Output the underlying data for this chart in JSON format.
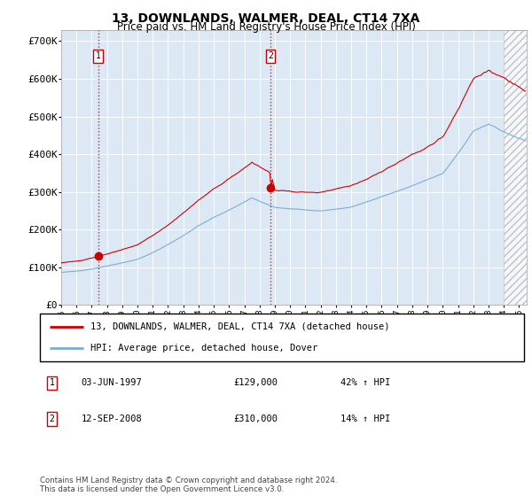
{
  "title": "13, DOWNLANDS, WALMER, DEAL, CT14 7XA",
  "subtitle": "Price paid vs. HM Land Registry's House Price Index (HPI)",
  "legend_line1": "13, DOWNLANDS, WALMER, DEAL, CT14 7XA (detached house)",
  "legend_line2": "HPI: Average price, detached house, Dover",
  "annotation1_label": "1",
  "annotation1_date": "03-JUN-1997",
  "annotation1_price": "£129,000",
  "annotation1_hpi": "42% ↑ HPI",
  "annotation2_label": "2",
  "annotation2_date": "12-SEP-2008",
  "annotation2_price": "£310,000",
  "annotation2_hpi": "14% ↑ HPI",
  "sale1_year": 1997.42,
  "sale1_price": 129000,
  "sale2_year": 2008.71,
  "sale2_price": 310000,
  "hpi_color": "#7aaed4",
  "price_color": "#cc0000",
  "plot_bg": "#dce9f5",
  "footer": "Contains HM Land Registry data © Crown copyright and database right 2024.\nThis data is licensed under the Open Government Licence v3.0.",
  "ylim": [
    0,
    730000
  ],
  "xlim_start": 1995.0,
  "xlim_end": 2025.5,
  "yticks": [
    0,
    100000,
    200000,
    300000,
    400000,
    500000,
    600000,
    700000
  ],
  "ytick_labels": [
    "£0",
    "£100K",
    "£200K",
    "£300K",
    "£400K",
    "£500K",
    "£600K",
    "£700K"
  ],
  "xticks": [
    1995,
    1996,
    1997,
    1998,
    1999,
    2000,
    2001,
    2002,
    2003,
    2004,
    2005,
    2006,
    2007,
    2008,
    2009,
    2010,
    2011,
    2012,
    2013,
    2014,
    2015,
    2016,
    2017,
    2018,
    2019,
    2020,
    2021,
    2022,
    2023,
    2024,
    2025
  ],
  "hatch_start": 2024.0
}
